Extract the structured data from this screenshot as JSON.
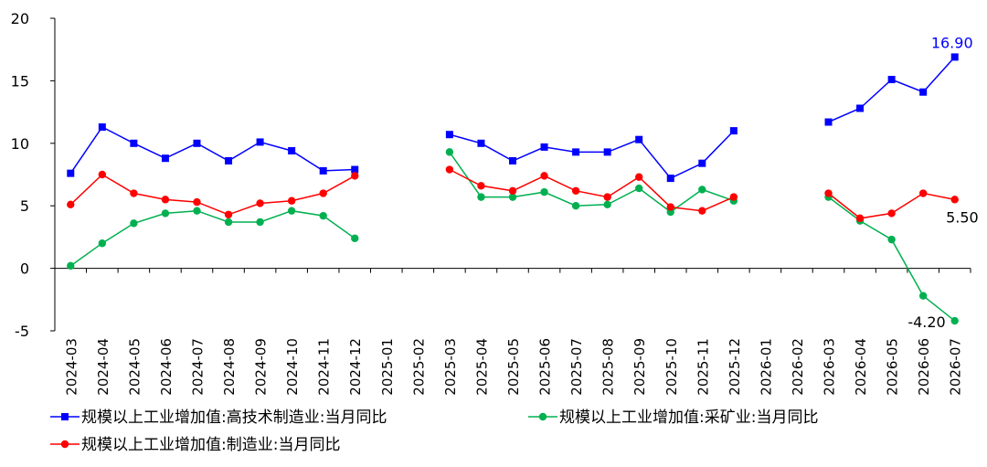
{
  "chart_data": {
    "type": "line",
    "title": "",
    "xlabel": "",
    "ylabel": "",
    "ylim": [
      -5,
      20
    ],
    "yticks": [
      -5,
      0,
      5,
      10,
      15,
      20
    ],
    "grid": false,
    "legend_position": "bottom",
    "categories": [
      "2024-03",
      "2024-04",
      "2024-05",
      "2024-06",
      "2024-07",
      "2024-08",
      "2024-09",
      "2024-10",
      "2024-11",
      "2024-12",
      "2025-01",
      "2025-02",
      "2025-03",
      "2025-04",
      "2025-05",
      "2025-06",
      "2025-07",
      "2025-08",
      "2025-09",
      "2025-10",
      "2025-11",
      "2025-12",
      "2026-01",
      "2026-02",
      "2026-03",
      "2026-04",
      "2026-05",
      "2026-06",
      "2026-07"
    ],
    "series": [
      {
        "name": "规模以上工业增加值:高技术制造业:当月同比",
        "color": "#0000ff",
        "marker": "square",
        "values": [
          7.6,
          11.3,
          10.0,
          8.8,
          10.0,
          8.6,
          10.1,
          9.4,
          7.8,
          7.9,
          null,
          null,
          10.7,
          10.0,
          8.6,
          9.7,
          9.3,
          9.3,
          10.3,
          7.2,
          8.4,
          11.0,
          null,
          null,
          11.7,
          12.8,
          15.1,
          14.1,
          16.9
        ]
      },
      {
        "name": "规模以上工业增加值:采矿业:当月同比",
        "color": "#00b050",
        "marker": "circle",
        "values": [
          0.2,
          2.0,
          3.6,
          4.4,
          4.6,
          3.7,
          3.7,
          4.6,
          4.2,
          2.4,
          null,
          null,
          9.3,
          5.7,
          5.7,
          6.1,
          5.0,
          5.1,
          6.4,
          4.5,
          6.3,
          5.4,
          null,
          null,
          5.7,
          3.8,
          2.3,
          -2.2,
          -4.2
        ]
      },
      {
        "name": "规模以上工业增加值:制造业:当月同比",
        "color": "#ff0000",
        "marker": "circle",
        "values": [
          5.1,
          7.5,
          6.0,
          5.5,
          5.3,
          4.3,
          5.2,
          5.4,
          6.0,
          7.4,
          null,
          null,
          7.9,
          6.6,
          6.2,
          7.4,
          6.2,
          5.7,
          7.3,
          4.9,
          4.6,
          5.7,
          null,
          null,
          6.0,
          4.0,
          4.4,
          6.0,
          5.5
        ]
      }
    ],
    "annotations": [
      {
        "series": 0,
        "index": 28,
        "text": "16.90",
        "color": "#0000ff"
      },
      {
        "series": 2,
        "index": 28,
        "text": "5.50",
        "color": "#000000"
      },
      {
        "series": 1,
        "index": 28,
        "text": "-4.20",
        "color": "#000000"
      }
    ]
  }
}
